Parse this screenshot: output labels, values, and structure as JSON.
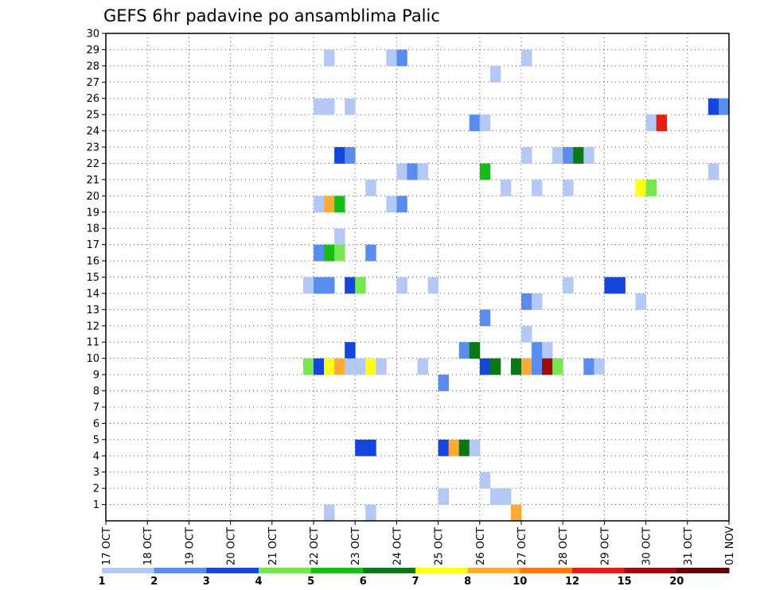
{
  "chart_data": {
    "type": "heatmap",
    "title": "GEFS 6hr padavine po ansamblima Palic",
    "xlabel": "",
    "ylabel": "",
    "x_ticks": [
      "17 OCT",
      "18 OCT",
      "19 OCT",
      "20 OCT",
      "21 OCT",
      "22 OCT",
      "23 OCT",
      "24 OCT",
      "25 OCT",
      "26 OCT",
      "27 OCT",
      "28 OCT",
      "29 OCT",
      "30 OCT",
      "31 OCT",
      "01 NOV"
    ],
    "y_ticks": [
      1,
      2,
      3,
      4,
      5,
      6,
      7,
      8,
      9,
      10,
      11,
      12,
      13,
      14,
      15,
      16,
      17,
      18,
      19,
      20,
      21,
      22,
      23,
      24,
      25,
      26,
      27,
      28,
      29,
      30
    ],
    "xlim": [
      "17 OCT 00Z",
      "01 NOV 00Z"
    ],
    "ylim": [
      0,
      30
    ],
    "grid": true,
    "legend": {
      "placement": "bottom",
      "labels": [
        "1",
        "2",
        "3",
        "4",
        "5",
        "6",
        "7",
        "8",
        "10",
        "12",
        "15",
        "20"
      ],
      "colors": [
        "#b4c8f5",
        "#5a8cf0",
        "#1446dc",
        "#78e650",
        "#14be14",
        "#0a7814",
        "#ffff14",
        "#ffaa32",
        "#ff7814",
        "#e61e14",
        "#a00a0a",
        "#640000"
      ]
    },
    "cells_format": [
      "day",
      "hour",
      "member",
      "bin"
    ],
    "cells": [
      [
        22,
        6,
        29,
        0
      ],
      [
        23,
        18,
        29,
        0
      ],
      [
        24,
        0,
        29,
        1
      ],
      [
        27,
        0,
        29,
        0
      ],
      [
        26,
        6,
        28,
        0
      ],
      [
        22,
        0,
        26,
        0
      ],
      [
        22,
        6,
        26,
        0
      ],
      [
        22,
        18,
        26,
        0
      ],
      [
        31,
        12,
        26,
        2
      ],
      [
        31,
        18,
        26,
        1
      ],
      [
        25,
        18,
        25,
        1
      ],
      [
        26,
        0,
        25,
        0
      ],
      [
        30,
        0,
        25,
        0
      ],
      [
        30,
        6,
        25,
        9
      ],
      [
        22,
        12,
        23,
        2
      ],
      [
        22,
        18,
        23,
        1
      ],
      [
        27,
        0,
        23,
        0
      ],
      [
        27,
        18,
        23,
        0
      ],
      [
        28,
        0,
        23,
        1
      ],
      [
        28,
        6,
        23,
        5
      ],
      [
        28,
        12,
        23,
        0
      ],
      [
        24,
        0,
        22,
        0
      ],
      [
        24,
        6,
        22,
        1
      ],
      [
        24,
        12,
        22,
        0
      ],
      [
        26,
        0,
        22,
        4
      ],
      [
        31,
        12,
        22,
        0
      ],
      [
        23,
        6,
        21,
        0
      ],
      [
        26,
        12,
        21,
        0
      ],
      [
        27,
        6,
        21,
        0
      ],
      [
        28,
        0,
        21,
        0
      ],
      [
        29,
        18,
        21,
        6
      ],
      [
        30,
        0,
        21,
        3
      ],
      [
        22,
        0,
        20,
        0
      ],
      [
        22,
        6,
        20,
        7
      ],
      [
        22,
        12,
        20,
        4
      ],
      [
        23,
        18,
        20,
        0
      ],
      [
        24,
        0,
        20,
        1
      ],
      [
        22,
        12,
        18,
        0
      ],
      [
        22,
        0,
        17,
        1
      ],
      [
        22,
        6,
        17,
        4
      ],
      [
        22,
        12,
        17,
        3
      ],
      [
        23,
        6,
        17,
        1
      ],
      [
        21,
        18,
        15,
        0
      ],
      [
        22,
        0,
        15,
        1
      ],
      [
        22,
        6,
        15,
        1
      ],
      [
        22,
        18,
        15,
        2
      ],
      [
        23,
        0,
        15,
        3
      ],
      [
        24,
        0,
        15,
        0
      ],
      [
        24,
        18,
        15,
        0
      ],
      [
        28,
        0,
        15,
        0
      ],
      [
        29,
        0,
        15,
        2
      ],
      [
        29,
        6,
        15,
        2
      ],
      [
        27,
        0,
        14,
        1
      ],
      [
        27,
        6,
        14,
        0
      ],
      [
        29,
        18,
        14,
        0
      ],
      [
        26,
        0,
        13,
        1
      ],
      [
        27,
        0,
        12,
        0
      ],
      [
        22,
        18,
        11,
        2
      ],
      [
        25,
        12,
        11,
        1
      ],
      [
        25,
        18,
        11,
        5
      ],
      [
        27,
        6,
        11,
        1
      ],
      [
        27,
        12,
        11,
        0
      ],
      [
        21,
        18,
        10,
        3
      ],
      [
        22,
        0,
        10,
        2
      ],
      [
        22,
        6,
        10,
        6
      ],
      [
        22,
        12,
        10,
        7
      ],
      [
        22,
        18,
        10,
        0
      ],
      [
        23,
        0,
        10,
        0
      ],
      [
        23,
        6,
        10,
        6
      ],
      [
        23,
        12,
        10,
        0
      ],
      [
        24,
        12,
        10,
        0
      ],
      [
        26,
        0,
        10,
        2
      ],
      [
        26,
        6,
        10,
        5
      ],
      [
        26,
        18,
        10,
        5
      ],
      [
        27,
        0,
        10,
        7
      ],
      [
        27,
        6,
        10,
        1
      ],
      [
        27,
        12,
        10,
        10
      ],
      [
        27,
        18,
        10,
        3
      ],
      [
        28,
        12,
        10,
        1
      ],
      [
        28,
        18,
        10,
        0
      ],
      [
        25,
        0,
        9,
        1
      ],
      [
        23,
        0,
        5,
        2
      ],
      [
        23,
        6,
        5,
        2
      ],
      [
        25,
        0,
        5,
        2
      ],
      [
        25,
        6,
        5,
        7
      ],
      [
        25,
        12,
        5,
        5
      ],
      [
        25,
        18,
        5,
        0
      ],
      [
        26,
        0,
        3,
        0
      ],
      [
        25,
        0,
        2,
        0
      ],
      [
        26,
        6,
        2,
        0
      ],
      [
        26,
        12,
        2,
        0
      ],
      [
        22,
        6,
        1,
        0
      ],
      [
        23,
        6,
        1,
        0
      ],
      [
        26,
        18,
        1,
        7
      ]
    ]
  }
}
